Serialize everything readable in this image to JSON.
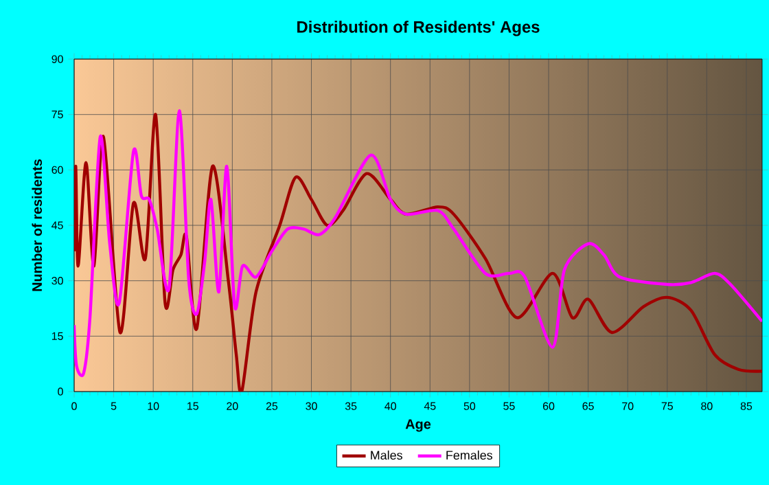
{
  "chart_data": {
    "type": "line",
    "title": "Distribution of Residents' Ages",
    "xlabel": "Age",
    "ylabel": "Number of residents",
    "xlim": [
      0,
      87
    ],
    "xticks": [
      0,
      5,
      10,
      15,
      20,
      25,
      30,
      35,
      40,
      45,
      50,
      55,
      60,
      65,
      70,
      75,
      80,
      85
    ],
    "ylim": [
      0,
      90
    ],
    "yticks": [
      0,
      15,
      30,
      45,
      60,
      75,
      90
    ],
    "grid": true,
    "legend": "bottom",
    "marker": "none",
    "line_style": "solid",
    "series": [
      {
        "name": "Males",
        "color": "#a00000",
        "x": [
          0,
          0.2,
          0.5,
          1.5,
          2.5,
          3.7,
          5.8,
          7.5,
          9,
          10.3,
          11.5,
          12.5,
          13.5,
          14.2,
          15.5,
          17.5,
          19.5,
          20.5,
          21.2,
          23,
          26,
          28,
          30,
          32,
          34,
          37,
          40,
          42,
          46,
          48,
          52,
          56,
          60.5,
          63,
          65,
          68,
          72,
          75,
          78,
          81,
          84,
          87
        ],
        "values": [
          38,
          61,
          34,
          62,
          34,
          69,
          16,
          51,
          36,
          75,
          24,
          33,
          37,
          42,
          17,
          61,
          30,
          10,
          0,
          27,
          45,
          58,
          52,
          45,
          49,
          59,
          52,
          48,
          50,
          48,
          36,
          20,
          32,
          20,
          25,
          16,
          23,
          25.5,
          22,
          10,
          6,
          5.5
        ]
      },
      {
        "name": "Females",
        "color": "#ff00ff",
        "x": [
          0,
          0.3,
          1.2,
          2,
          3.3,
          4.5,
          5.7,
          7.5,
          8.5,
          9.5,
          10.5,
          12,
          13.3,
          14.5,
          15.5,
          16.5,
          17.3,
          18.3,
          19.3,
          20.3,
          21.3,
          23,
          25,
          27,
          29,
          31,
          33,
          37.5,
          40,
          42,
          46,
          48,
          52,
          55,
          57,
          60.5,
          62,
          65,
          67,
          69,
          75,
          78,
          81,
          83,
          87
        ],
        "values": [
          18,
          7,
          5,
          20,
          69,
          40,
          24,
          65,
          53,
          52,
          44,
          28,
          76,
          30,
          21,
          35,
          52,
          27,
          61,
          23,
          34,
          31,
          38,
          44,
          44,
          42.5,
          47,
          64,
          52,
          48,
          49,
          44,
          32,
          32,
          31,
          12,
          33,
          40,
          37,
          31,
          29,
          29.5,
          32,
          29,
          19
        ]
      }
    ]
  }
}
